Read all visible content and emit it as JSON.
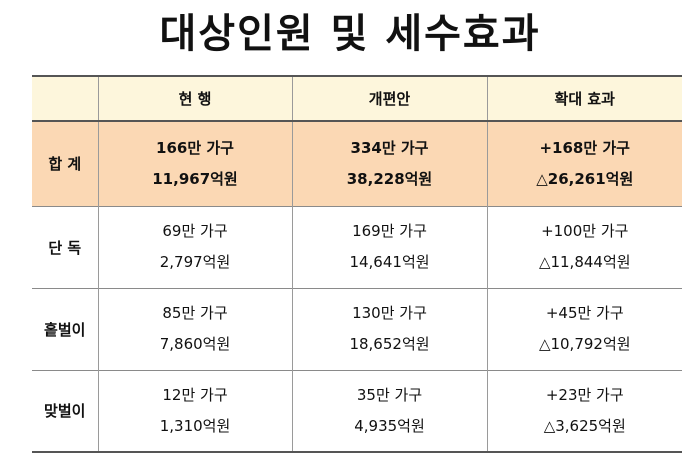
{
  "title": "대상인원 및 세수효과",
  "columns": [
    "",
    "현 행",
    "개편안",
    "확대 효과"
  ],
  "rows": [
    {
      "label": "합 계",
      "cells": [
        {
          "households": "166만 가구",
          "amount": "11,967억원"
        },
        {
          "households": "334만 가구",
          "amount": "38,228억원"
        },
        {
          "households": "+168만 가구",
          "amount": "△26,261억원"
        }
      ]
    },
    {
      "label": "단 독",
      "cells": [
        {
          "households": "69만 가구",
          "amount": "2,797억원"
        },
        {
          "households": "169만 가구",
          "amount": "14,641억원"
        },
        {
          "households": "+100만 가구",
          "amount": "△11,844억원"
        }
      ]
    },
    {
      "label": "홑벌이",
      "cells": [
        {
          "households": "85만 가구",
          "amount": "7,860억원"
        },
        {
          "households": "130만 가구",
          "amount": "18,652억원"
        },
        {
          "households": "+45만 가구",
          "amount": "△10,792억원"
        }
      ]
    },
    {
      "label": "맞벌이",
      "cells": [
        {
          "households": "12만 가구",
          "amount": "1,310억원"
        },
        {
          "households": "35만 가구",
          "amount": "4,935억원"
        },
        {
          "households": "+23만 가구",
          "amount": "△3,625억원"
        }
      ]
    }
  ],
  "colors": {
    "header_bg": "#fdf6dc",
    "total_bg": "#fbd8b4",
    "border": "#9a9a9a"
  }
}
